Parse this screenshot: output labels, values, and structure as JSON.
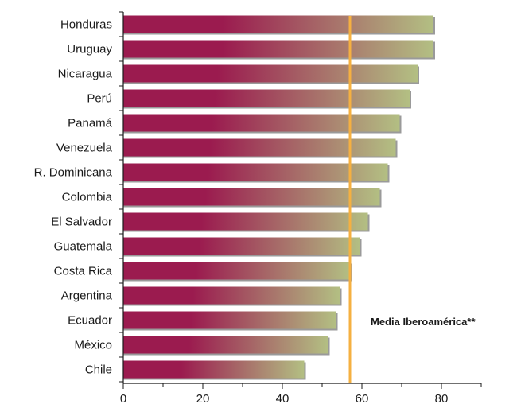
{
  "chart_data": {
    "type": "bar",
    "orientation": "horizontal",
    "categories": [
      "Honduras",
      "Uruguay",
      "Nicaragua",
      "Perú",
      "Panamá",
      "Venezuela",
      "R. Dominicana",
      "Colombia",
      "El Salvador",
      "Guatemala",
      "Costa Rica",
      "Argentina",
      "Ecuador",
      "México",
      "Chile"
    ],
    "values": [
      78,
      78,
      74,
      72,
      69.5,
      68.5,
      66.5,
      64.5,
      61.5,
      59.5,
      57,
      54.5,
      53.5,
      51.5,
      45.5
    ],
    "xlim": [
      0,
      90
    ],
    "xticks": [
      0,
      20,
      40,
      60,
      80
    ],
    "reference_line": {
      "value": 57,
      "label": "Media Iberoamérica**",
      "color": "#f5b041"
    },
    "bar_colors": {
      "start": "#9b1b4f",
      "end": "#b3bf83"
    },
    "grid": false,
    "legend": "none"
  }
}
